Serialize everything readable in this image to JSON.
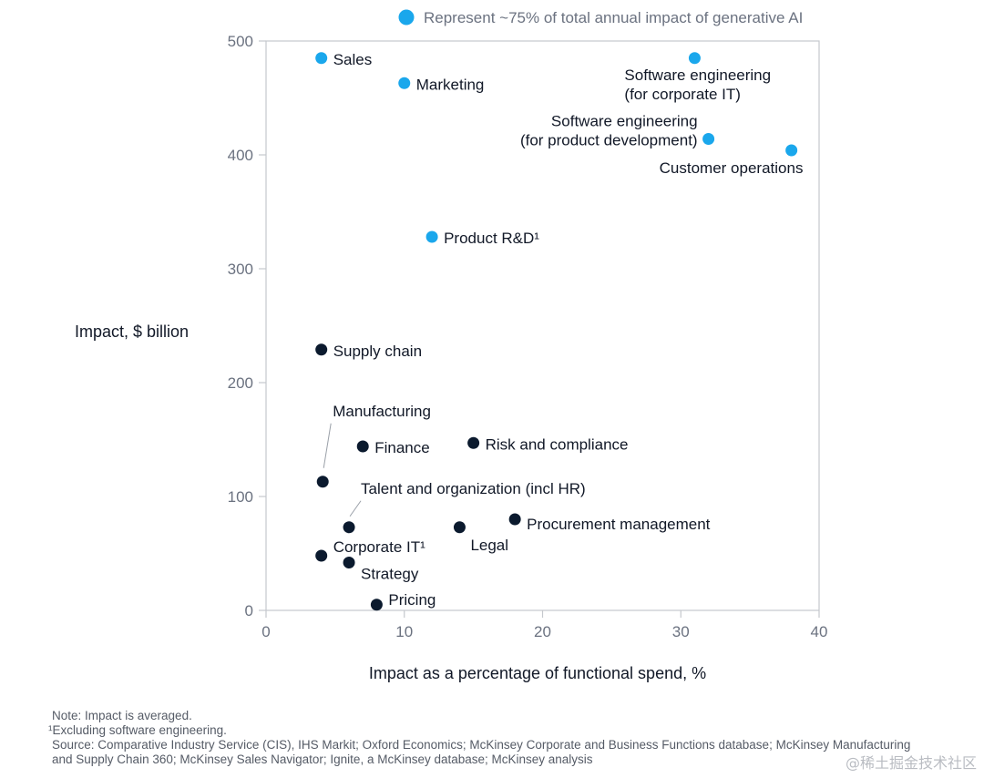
{
  "chart_data": {
    "type": "scatter",
    "x": {
      "label": "Impact as a percentage of functional spend, %",
      "lim": [
        0,
        40
      ],
      "ticks": [
        0,
        10,
        20,
        30,
        40
      ]
    },
    "y": {
      "label": "Impact, $ billion",
      "lim": [
        0,
        500
      ],
      "ticks": [
        0,
        100,
        200,
        300,
        400,
        500
      ]
    },
    "legend": {
      "label": "Represent ~75% of total annual impact of generative AI",
      "color": "#1aa7ec",
      "position": "top"
    },
    "colors": {
      "highlight": "#1aa7ec",
      "other": "#0b1a2e"
    },
    "points": [
      {
        "name": "Sales",
        "lines": [
          "Sales"
        ],
        "x": 4,
        "y": 485,
        "group": "highlight"
      },
      {
        "name": "Marketing",
        "lines": [
          "Marketing"
        ],
        "x": 10,
        "y": 463,
        "group": "highlight"
      },
      {
        "name": "Software engineering (for corporate IT)",
        "lines": [
          "Software engineering",
          "(for corporate IT)"
        ],
        "x": 31,
        "y": 485,
        "group": "highlight"
      },
      {
        "name": "Software engineering (for product development)",
        "lines": [
          "Software engineering",
          "(for product development)"
        ],
        "x": 32,
        "y": 414,
        "group": "highlight"
      },
      {
        "name": "Customer operations",
        "lines": [
          "Customer operations"
        ],
        "x": 38,
        "y": 404,
        "group": "highlight"
      },
      {
        "name": "Product R&D¹",
        "lines": [
          "Product R&D¹"
        ],
        "x": 12,
        "y": 328,
        "group": "highlight"
      },
      {
        "name": "Supply chain",
        "lines": [
          "Supply chain"
        ],
        "x": 4,
        "y": 229,
        "group": "other"
      },
      {
        "name": "Manufacturing",
        "lines": [
          "Manufacturing"
        ],
        "x": 4.1,
        "y": 113,
        "group": "other"
      },
      {
        "name": "Finance",
        "lines": [
          "Finance"
        ],
        "x": 7,
        "y": 144,
        "group": "other"
      },
      {
        "name": "Risk and compliance",
        "lines": [
          "Risk and compliance"
        ],
        "x": 15,
        "y": 147,
        "group": "other"
      },
      {
        "name": "Talent and organization (incl HR)",
        "lines": [
          "Talent and organization (incl HR)"
        ],
        "x": 6,
        "y": 73,
        "group": "other"
      },
      {
        "name": "Procurement management",
        "lines": [
          "Procurement management"
        ],
        "x": 18,
        "y": 80,
        "group": "other"
      },
      {
        "name": "Legal",
        "lines": [
          "Legal"
        ],
        "x": 14,
        "y": 73,
        "group": "other"
      },
      {
        "name": "Corporate IT¹",
        "lines": [
          "Corporate IT¹"
        ],
        "x": 4,
        "y": 48,
        "group": "other"
      },
      {
        "name": "Strategy",
        "lines": [
          "Strategy"
        ],
        "x": 6,
        "y": 42,
        "group": "other"
      },
      {
        "name": "Pricing",
        "lines": [
          "Pricing"
        ],
        "x": 8,
        "y": 5,
        "group": "other"
      }
    ]
  },
  "notes": {
    "note": "Note: Impact is averaged.",
    "footnote": "¹Excluding software engineering.",
    "source_line1": "Source: Comparative Industry Service (CIS), IHS Markit; Oxford Economics; McKinsey Corporate and Business Functions database; McKinsey Manufacturing",
    "source_line2": "and Supply Chain 360; McKinsey Sales Navigator; Ignite, a McKinsey database; McKinsey analysis"
  },
  "watermark": "@稀土掘金技术社区"
}
